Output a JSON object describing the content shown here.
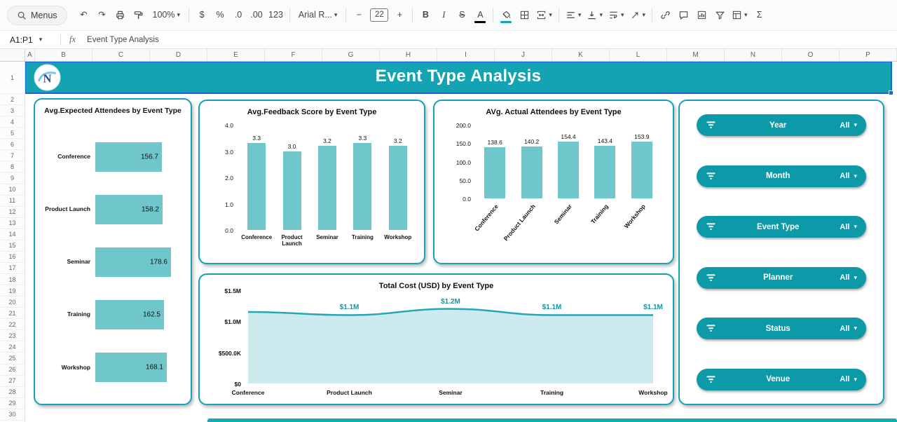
{
  "toolbar": {
    "menus_label": "Menus",
    "items": [
      {
        "name": "undo-button",
        "text": "↶"
      },
      {
        "name": "redo-button",
        "text": "↷"
      },
      {
        "name": "print-button",
        "icon": "printer"
      },
      {
        "name": "paint-format-button",
        "icon": "paint-roller"
      },
      {
        "name": "zoom-select",
        "text": "100%",
        "dropdown": true,
        "wide": true
      },
      {
        "sep": true
      },
      {
        "name": "format-currency-button",
        "text": "$"
      },
      {
        "name": "format-percent-button",
        "text": "%"
      },
      {
        "name": "decrease-decimal-button",
        "text": ".0"
      },
      {
        "name": "increase-decimal-button",
        "text": ".00"
      },
      {
        "name": "more-formats-button",
        "text": "123"
      },
      {
        "sep": true
      },
      {
        "name": "font-select",
        "text": "Arial R...",
        "dropdown": true,
        "wide": true
      },
      {
        "sep": true
      },
      {
        "name": "decrease-font-size-button",
        "text": "−"
      },
      {
        "name": "font-size-input",
        "text": "22",
        "box": true
      },
      {
        "name": "increase-font-size-button",
        "text": "+"
      },
      {
        "sep": true
      },
      {
        "name": "bold-button",
        "text": "B",
        "bold": true
      },
      {
        "name": "italic-button",
        "text": "I",
        "italic": true
      },
      {
        "name": "strikethrough-button",
        "text": "S",
        "strike": true
      },
      {
        "name": "text-color-button",
        "text": "A",
        "colorbar": "#000000"
      },
      {
        "sep": true
      },
      {
        "name": "fill-color-button",
        "icon": "fill",
        "colorbar": "#12a5b2"
      },
      {
        "name": "borders-button",
        "icon": "borders"
      },
      {
        "name": "merge-cells-button",
        "icon": "merge",
        "dropdown": true
      },
      {
        "sep": true
      },
      {
        "name": "horizontal-align-button",
        "icon": "align-left",
        "dropdown": true
      },
      {
        "name": "vertical-align-button",
        "icon": "valign",
        "dropdown": true
      },
      {
        "name": "text-wrap-button",
        "icon": "wrap",
        "dropdown": true
      },
      {
        "name": "text-rotation-button",
        "icon": "rotate",
        "dropdown": true
      },
      {
        "sep": true
      },
      {
        "name": "insert-link-button",
        "icon": "link"
      },
      {
        "name": "insert-comment-button",
        "icon": "comment"
      },
      {
        "name": "insert-chart-button",
        "icon": "chart"
      },
      {
        "name": "create-filter-button",
        "icon": "filter"
      },
      {
        "name": "table-views-button",
        "icon": "table",
        "dropdown": true
      },
      {
        "name": "functions-button",
        "text": "Σ"
      }
    ]
  },
  "formula_bar": {
    "cell_ref": "A1:P1",
    "fx_label": "fx",
    "value": "Event Type Analysis"
  },
  "grid": {
    "columns": [
      "A",
      "B",
      "C",
      "D",
      "E",
      "F",
      "G",
      "H",
      "I",
      "J",
      "K",
      "L",
      "M",
      "N",
      "O",
      "P"
    ],
    "rows": [
      "1",
      "2",
      "3",
      "4",
      "5",
      "6",
      "7",
      "8",
      "9",
      "10",
      "11",
      "12",
      "13",
      "14",
      "15",
      "16",
      "17",
      "18",
      "19",
      "20",
      "21",
      "22",
      "23",
      "24",
      "25",
      "26",
      "27",
      "28",
      "29",
      "30"
    ]
  },
  "dashboard": {
    "banner_title": "Event Type Analysis"
  },
  "slicers": [
    {
      "label": "Year",
      "value": "All"
    },
    {
      "label": "Month",
      "value": "All"
    },
    {
      "label": "Event Type",
      "value": "All"
    },
    {
      "label": "Planner",
      "value": "All"
    },
    {
      "label": "Status",
      "value": "All"
    },
    {
      "label": "Venue",
      "value": "All"
    }
  ],
  "chart_data": [
    {
      "id": "avg-expected-attendees",
      "type": "bar",
      "orientation": "horizontal",
      "title": "Avg.Expected Attendees by Event Type",
      "categories": [
        "Conference",
        "Product Launch",
        "Seminar",
        "Training",
        "Workshop"
      ],
      "values": [
        156.7,
        158.2,
        178.6,
        162.5,
        168.1
      ],
      "value_labels": [
        "156.7",
        "158.2",
        "178.6",
        "162.5",
        "168.1"
      ],
      "xlim": [
        0,
        180
      ],
      "grid": false,
      "legend": "none"
    },
    {
      "id": "avg-feedback-score",
      "type": "bar",
      "orientation": "vertical",
      "title": "Avg.Feedback Score by Event Type",
      "categories": [
        "Conference",
        "Product Launch",
        "Seminar",
        "Training",
        "Workshop"
      ],
      "values": [
        3.3,
        3.0,
        3.2,
        3.3,
        3.2
      ],
      "value_labels": [
        "3.3",
        "3.0",
        "3.2",
        "3.3",
        "3.2"
      ],
      "ylim": [
        0,
        4
      ],
      "yticks": [
        "4.0",
        "3.0",
        "2.0",
        "1.0",
        "0.0"
      ],
      "grid": false,
      "legend": "none"
    },
    {
      "id": "avg-actual-attendees",
      "type": "bar",
      "orientation": "vertical",
      "title": "AVg. Actual Attendees by Event Type",
      "categories": [
        "Conference",
        "Product Launch",
        "Seminar",
        "Training",
        "Workshop"
      ],
      "values": [
        138.6,
        140.2,
        154.4,
        143.4,
        153.9
      ],
      "value_labels": [
        "138.6",
        "140.2",
        "154.4",
        "143.4",
        "153.9"
      ],
      "ylim": [
        0,
        200
      ],
      "yticks": [
        "200.0",
        "150.0",
        "100.0",
        "50.0",
        "0.0"
      ],
      "x_label_rotation": -50,
      "grid": false,
      "legend": "none"
    },
    {
      "id": "total-cost-usd",
      "type": "area",
      "title": "Total Cost (USD) by Event Type",
      "categories": [
        "Conference",
        "Product Launch",
        "Seminar",
        "Training",
        "Workshop"
      ],
      "values_musd": [
        1.15,
        1.1,
        1.2,
        1.1,
        1.1
      ],
      "point_labels": [
        "",
        "$1.1M",
        "$1.2M",
        "$1.1M",
        "$1.1M"
      ],
      "ylim_musd": [
        0,
        1.5
      ],
      "yticks": [
        "$1.5M",
        "$1.0M",
        "$500.0K",
        "$0"
      ],
      "grid": false,
      "legend": "none"
    }
  ],
  "colors": {
    "banner_teal": "#14a3b2",
    "bar_fill": "#6fc7cb",
    "slicer_teal": "#0d9aa8",
    "area_fill": "#cdeaee",
    "area_line": "#25a8b4",
    "point_label_teal": "#1395a3",
    "selection_blue": "#1967d2"
  }
}
